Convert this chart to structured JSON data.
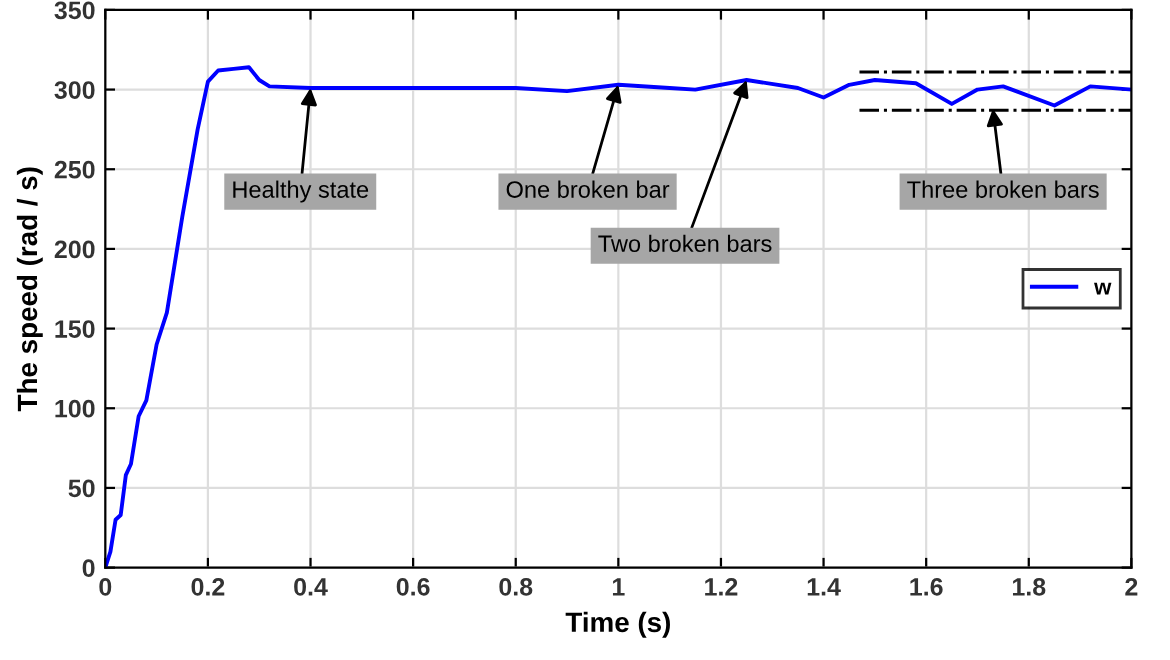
{
  "chart_data": {
    "type": "line",
    "xlabel": "Time (s)",
    "ylabel": "The speed (rad / s)",
    "xlim": [
      0,
      2
    ],
    "ylim": [
      0,
      350
    ],
    "xticks": [
      0,
      0.2,
      0.4,
      0.6,
      0.8,
      1,
      1.2,
      1.4,
      1.6,
      1.8,
      2
    ],
    "yticks": [
      0,
      50,
      100,
      150,
      200,
      250,
      300,
      350
    ],
    "grid": true,
    "legend": "right",
    "series": [
      {
        "name": "w",
        "color": "#0000ff",
        "line_style": "solid",
        "x": [
          0,
          0.01,
          0.02,
          0.03,
          0.04,
          0.05,
          0.065,
          0.08,
          0.1,
          0.12,
          0.15,
          0.18,
          0.2,
          0.22,
          0.25,
          0.28,
          0.3,
          0.32,
          0.4,
          0.8,
          0.9,
          1.0,
          1.1,
          1.15,
          1.25,
          1.35,
          1.4,
          1.45,
          1.5,
          1.58,
          1.65,
          1.7,
          1.75,
          1.85,
          1.92,
          2.0
        ],
        "values": [
          0,
          10,
          30,
          33,
          58,
          65,
          95,
          105,
          140,
          160,
          220,
          275,
          305,
          312,
          313,
          314,
          306,
          302,
          301,
          301,
          299,
          303,
          301,
          300,
          306,
          301,
          295,
          303,
          306,
          304,
          291,
          300,
          302,
          290,
          302,
          300
        ]
      },
      {
        "color": "#000000",
        "line_style": "dashdot",
        "x": [
          1.47,
          2.0
        ],
        "values": [
          311,
          311
        ]
      },
      {
        "color": "#000000",
        "line_style": "dashdot",
        "x": [
          1.47,
          2.0
        ],
        "values": [
          287,
          287
        ]
      }
    ],
    "annotations": [
      {
        "text": "Healthy state",
        "x": 0.4,
        "y": 301
      },
      {
        "text": "One broken bar",
        "x": 1.0,
        "y": 303
      },
      {
        "text": "Two broken bars",
        "x": 1.25,
        "y": 306
      },
      {
        "text": "Three broken bars",
        "x": 1.73,
        "y": 288
      }
    ]
  }
}
